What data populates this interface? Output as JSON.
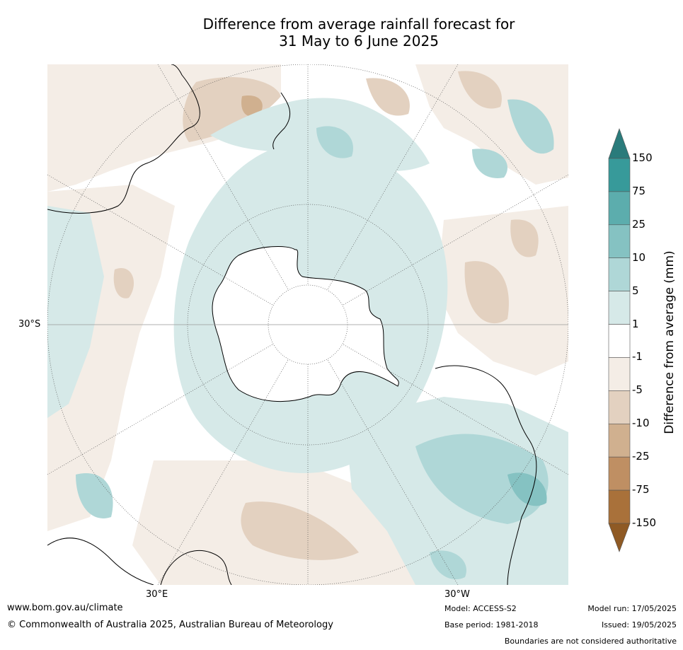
{
  "title": {
    "line1": "Difference from average rainfall forecast for",
    "line2": "31 May to 6 June 2025"
  },
  "map": {
    "projection": "south-polar-stereographic",
    "lat_label": "30°S",
    "lon_labels": {
      "east": "30°E",
      "west": "30°W"
    }
  },
  "colorbar": {
    "title": "Difference from average (mm)",
    "ticks": [
      "150",
      "75",
      "25",
      "10",
      "5",
      "1",
      "-1",
      "-5",
      "-10",
      "-25",
      "-75",
      "-150"
    ],
    "colors": [
      "#2a7b7b",
      "#379a9a",
      "#5cadad",
      "#85c2c2",
      "#afd7d7",
      "#d6e9e8",
      "#ffffff",
      "#f4ede6",
      "#e3d1c0",
      "#d0b08f",
      "#bf8f63",
      "#a9713a",
      "#8f5a24"
    ]
  },
  "footer": {
    "url": "www.bom.gov.au/climate",
    "copyright": "© Commonwealth of Australia 2025, Australian Bureau of Meteorology",
    "model": "Model: ACCESS-S2",
    "base_period": "Base period: 1981-2018",
    "model_run": "Model run: 17/05/2025",
    "issued": "Issued: 19/05/2025",
    "disclaimer": "Boundaries are not considered authoritative"
  }
}
